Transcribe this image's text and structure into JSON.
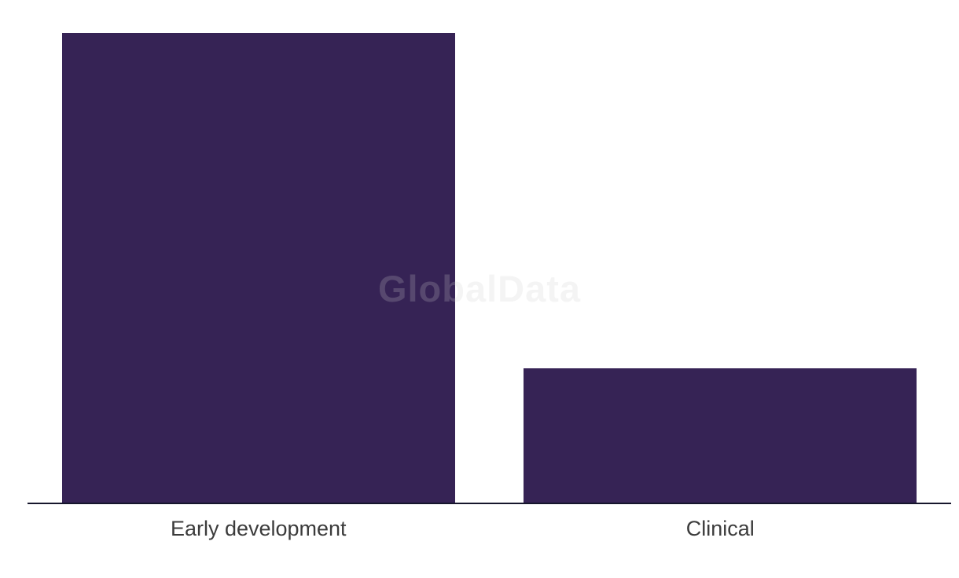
{
  "chart_data": {
    "type": "bar",
    "title": "",
    "xlabel": "",
    "ylabel": "",
    "categories": [
      "Early development",
      "Clinical"
    ],
    "values": [
      7,
      2
    ],
    "ylim": [
      0,
      7
    ],
    "grid": false,
    "legend": false,
    "note": "Y-axis has no ticks or labels; values estimated from relative bar heights (ratio ~3.5:1)",
    "bar_color": "#362355",
    "axis_line_color": "#16162c",
    "label_color": "#3b3b3b"
  },
  "watermark": {
    "text": "GlobalData",
    "color": "rgba(205,205,205,0.22)"
  }
}
